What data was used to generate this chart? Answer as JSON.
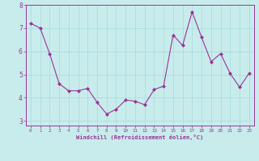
{
  "x": [
    0,
    1,
    2,
    3,
    4,
    5,
    6,
    7,
    8,
    9,
    10,
    11,
    12,
    13,
    14,
    15,
    16,
    17,
    18,
    19,
    20,
    21,
    22,
    23
  ],
  "y": [
    7.2,
    7.0,
    5.9,
    4.6,
    4.3,
    4.3,
    4.4,
    3.8,
    3.3,
    3.5,
    3.9,
    3.85,
    3.7,
    4.35,
    4.5,
    6.7,
    6.25,
    7.7,
    6.6,
    5.55,
    5.9,
    5.05,
    4.45,
    5.05
  ],
  "line_color": "#993399",
  "marker": "D",
  "marker_size": 2,
  "bg_color": "#c8ecec",
  "grid_color": "#aadddd",
  "xlabel": "Windchill (Refroidissement éolien,°C)",
  "xlabel_color": "#993399",
  "tick_color": "#993399",
  "label_color": "#993399",
  "ylim": [
    2.8,
    8.0
  ],
  "xlim": [
    -0.5,
    23.5
  ],
  "yticks": [
    3,
    4,
    5,
    6,
    7,
    8
  ],
  "xticks": [
    0,
    1,
    2,
    3,
    4,
    5,
    6,
    7,
    8,
    9,
    10,
    11,
    12,
    13,
    14,
    15,
    16,
    17,
    18,
    19,
    20,
    21,
    22,
    23
  ]
}
